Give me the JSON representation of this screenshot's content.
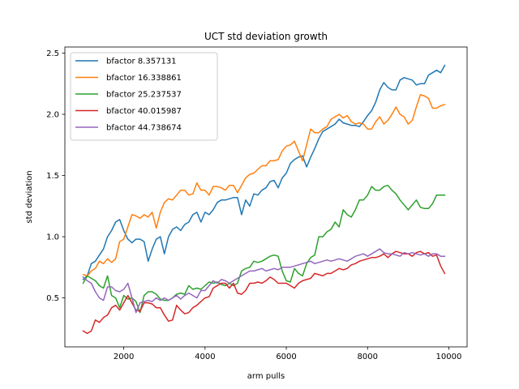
{
  "chart_data": {
    "type": "line",
    "title": "UCT std deviation growth",
    "xlabel": "arm pulls",
    "ylabel": "std deviation",
    "xlim": [
      550,
      10450
    ],
    "ylim": [
      0.1,
      2.55
    ],
    "xticks": [
      2000,
      4000,
      6000,
      8000,
      10000
    ],
    "yticks": [
      0.5,
      1.0,
      1.5,
      2.0,
      2.5
    ],
    "xtick_labels": [
      "2000",
      "4000",
      "6000",
      "8000",
      "10000"
    ],
    "ytick_labels": [
      "0.5",
      "1.0",
      "1.5",
      "2.0",
      "2.5"
    ],
    "grid": false,
    "legend_position": "upper-left",
    "x": [
      1000,
      1100,
      1200,
      1300,
      1400,
      1500,
      1600,
      1700,
      1800,
      1900,
      2000,
      2100,
      2200,
      2300,
      2400,
      2500,
      2600,
      2700,
      2800,
      2900,
      3000,
      3100,
      3200,
      3300,
      3400,
      3500,
      3600,
      3700,
      3800,
      3900,
      4000,
      4100,
      4200,
      4300,
      4400,
      4500,
      4600,
      4700,
      4800,
      4900,
      5000,
      5100,
      5200,
      5300,
      5400,
      5500,
      5600,
      5700,
      5800,
      5900,
      6000,
      6100,
      6200,
      6300,
      6400,
      6500,
      6600,
      6700,
      6800,
      6900,
      7000,
      7100,
      7200,
      7300,
      7400,
      7500,
      7600,
      7700,
      7800,
      7900,
      8000,
      8100,
      8200,
      8300,
      8400,
      8500,
      8600,
      8700,
      8800,
      8900,
      9000,
      9100,
      9200,
      9300,
      9400,
      9500,
      9600,
      9700,
      9800,
      9900
    ],
    "series": [
      {
        "name": "bfactor 8.357131",
        "color": "#1f77b4",
        "values": [
          0.65,
          0.68,
          0.78,
          0.8,
          0.85,
          0.9,
          1.0,
          1.05,
          1.12,
          1.14,
          1.05,
          0.98,
          0.95,
          0.98,
          0.98,
          0.96,
          0.8,
          0.9,
          0.98,
          1.0,
          0.86,
          1.0,
          1.06,
          1.08,
          1.05,
          1.1,
          1.12,
          1.18,
          1.2,
          1.12,
          1.2,
          1.18,
          1.22,
          1.28,
          1.3,
          1.3,
          1.31,
          1.32,
          1.32,
          1.18,
          1.3,
          1.25,
          1.35,
          1.34,
          1.38,
          1.4,
          1.45,
          1.46,
          1.4,
          1.48,
          1.52,
          1.6,
          1.63,
          1.65,
          1.66,
          1.57,
          1.65,
          1.72,
          1.8,
          1.86,
          1.88,
          1.9,
          1.92,
          1.96,
          1.93,
          1.92,
          1.91,
          1.91,
          1.9,
          1.94,
          1.99,
          2.03,
          2.1,
          2.2,
          2.26,
          2.22,
          2.2,
          2.2,
          2.28,
          2.3,
          2.29,
          2.28,
          2.24,
          2.25,
          2.25,
          2.32,
          2.34,
          2.36,
          2.34,
          2.4
        ]
      },
      {
        "name": "bfactor 16.338861",
        "color": "#ff7f0e",
        "values": [
          0.69,
          0.68,
          0.72,
          0.74,
          0.8,
          0.78,
          0.82,
          0.79,
          0.82,
          0.96,
          0.98,
          1.08,
          1.18,
          1.17,
          1.15,
          1.18,
          1.16,
          1.2,
          1.07,
          1.2,
          1.28,
          1.31,
          1.3,
          1.34,
          1.38,
          1.38,
          1.34,
          1.35,
          1.44,
          1.38,
          1.38,
          1.34,
          1.41,
          1.41,
          1.4,
          1.38,
          1.42,
          1.42,
          1.36,
          1.42,
          1.48,
          1.51,
          1.52,
          1.55,
          1.58,
          1.58,
          1.62,
          1.62,
          1.63,
          1.7,
          1.74,
          1.75,
          1.78,
          1.7,
          1.62,
          1.75,
          1.88,
          1.85,
          1.85,
          1.88,
          1.9,
          1.96,
          1.98,
          2.0,
          1.97,
          1.99,
          1.94,
          1.92,
          1.93,
          1.92,
          1.88,
          1.88,
          1.94,
          1.98,
          1.92,
          1.95,
          2.0,
          2.06,
          2.0,
          1.98,
          1.92,
          1.95,
          2.06,
          2.16,
          2.15,
          2.13,
          2.05,
          2.05,
          2.07,
          2.08
        ]
      },
      {
        "name": "bfactor 25.237537",
        "color": "#2ca02c",
        "values": [
          0.62,
          0.68,
          0.66,
          0.64,
          0.6,
          0.58,
          0.68,
          0.52,
          0.5,
          0.42,
          0.52,
          0.49,
          0.5,
          0.47,
          0.38,
          0.52,
          0.55,
          0.55,
          0.53,
          0.49,
          0.48,
          0.48,
          0.5,
          0.53,
          0.54,
          0.53,
          0.6,
          0.57,
          0.58,
          0.57,
          0.6,
          0.63,
          0.62,
          0.63,
          0.61,
          0.6,
          0.62,
          0.6,
          0.62,
          0.72,
          0.74,
          0.75,
          0.8,
          0.79,
          0.8,
          0.82,
          0.84,
          0.85,
          0.84,
          0.72,
          0.64,
          0.63,
          0.74,
          0.7,
          0.68,
          0.78,
          0.83,
          0.85,
          1.0,
          1.0,
          1.04,
          1.06,
          1.12,
          1.08,
          1.22,
          1.18,
          1.16,
          1.22,
          1.3,
          1.3,
          1.34,
          1.41,
          1.38,
          1.38,
          1.41,
          1.42,
          1.38,
          1.35,
          1.3,
          1.26,
          1.22,
          1.26,
          1.3,
          1.24,
          1.23,
          1.23,
          1.27,
          1.34,
          1.34,
          1.34
        ]
      },
      {
        "name": "bfactor 40.015987",
        "color": "#d62728",
        "values": [
          0.23,
          0.21,
          0.23,
          0.32,
          0.3,
          0.34,
          0.36,
          0.42,
          0.44,
          0.4,
          0.46,
          0.52,
          0.46,
          0.4,
          0.39,
          0.46,
          0.46,
          0.45,
          0.42,
          0.42,
          0.36,
          0.31,
          0.32,
          0.44,
          0.4,
          0.37,
          0.38,
          0.42,
          0.44,
          0.47,
          0.5,
          0.51,
          0.58,
          0.6,
          0.62,
          0.62,
          0.58,
          0.62,
          0.54,
          0.53,
          0.56,
          0.62,
          0.62,
          0.63,
          0.62,
          0.64,
          0.67,
          0.65,
          0.62,
          0.62,
          0.62,
          0.6,
          0.58,
          0.62,
          0.64,
          0.65,
          0.66,
          0.7,
          0.69,
          0.68,
          0.7,
          0.7,
          0.72,
          0.74,
          0.73,
          0.74,
          0.77,
          0.78,
          0.8,
          0.81,
          0.82,
          0.83,
          0.83,
          0.84,
          0.86,
          0.83,
          0.86,
          0.88,
          0.87,
          0.86,
          0.86,
          0.84,
          0.87,
          0.88,
          0.86,
          0.87,
          0.84,
          0.85,
          0.76,
          0.7
        ]
      },
      {
        "name": "bfactor 44.738674",
        "color": "#9467bd",
        "values": [
          0.67,
          0.64,
          0.62,
          0.55,
          0.5,
          0.48,
          0.59,
          0.59,
          0.56,
          0.55,
          0.57,
          0.62,
          0.5,
          0.38,
          0.46,
          0.47,
          0.48,
          0.47,
          0.5,
          0.48,
          0.5,
          0.48,
          0.5,
          0.52,
          0.49,
          0.52,
          0.54,
          0.52,
          0.5,
          0.56,
          0.56,
          0.6,
          0.64,
          0.62,
          0.65,
          0.64,
          0.62,
          0.64,
          0.66,
          0.68,
          0.7,
          0.72,
          0.72,
          0.73,
          0.74,
          0.72,
          0.73,
          0.74,
          0.73,
          0.75,
          0.75,
          0.75,
          0.76,
          0.77,
          0.78,
          0.79,
          0.8,
          0.78,
          0.79,
          0.8,
          0.81,
          0.8,
          0.81,
          0.82,
          0.81,
          0.8,
          0.82,
          0.84,
          0.85,
          0.86,
          0.84,
          0.86,
          0.88,
          0.9,
          0.87,
          0.86,
          0.86,
          0.85,
          0.84,
          0.87,
          0.86,
          0.87,
          0.86,
          0.85,
          0.86,
          0.84,
          0.86,
          0.86,
          0.84,
          0.84
        ]
      }
    ]
  }
}
